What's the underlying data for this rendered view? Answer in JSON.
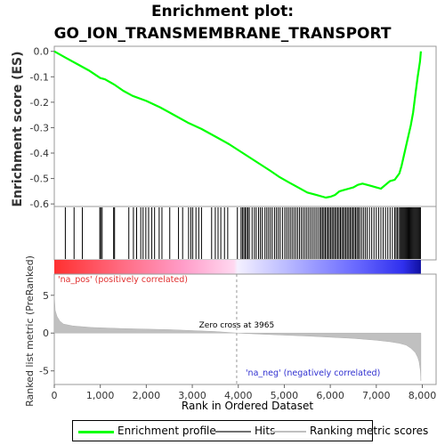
{
  "title_line1": "Enrichment plot:",
  "title_line2": "GO_ION_TRANSMEMBRANE_TRANSPORT",
  "legend": {
    "items": [
      {
        "label": "Enrichment profile",
        "color": "#00ff00"
      },
      {
        "label": "Hits",
        "color": "#707070"
      },
      {
        "label": "Ranking metric scores",
        "color": "#c0c0c0"
      }
    ]
  },
  "chart_data": {
    "type": "line",
    "xlabel": "Rank in Ordered Dataset",
    "xlim": [
      0,
      8300
    ],
    "x_ticks": [
      0,
      1000,
      2000,
      3000,
      4000,
      5000,
      6000,
      7000,
      8000
    ],
    "x_tick_labels": [
      "0",
      "1,000",
      "2,000",
      "3,000",
      "4,000",
      "5,000",
      "6,000",
      "7,000",
      "8,000"
    ],
    "es_panel": {
      "ylabel": "Enrichment score (ES)",
      "ylim": [
        -0.61,
        0.02
      ],
      "y_ticks": [
        0.0,
        -0.1,
        -0.2,
        -0.3,
        -0.4,
        -0.5,
        -0.6
      ],
      "y_tick_labels": [
        "0.0",
        "-0.1",
        "-0.2",
        "-0.3",
        "-0.4",
        "-0.5",
        "-0.6"
      ],
      "series": [
        {
          "name": "Enrichment profile",
          "color": "#00ff00",
          "x": [
            0,
            250,
            500,
            750,
            1000,
            1100,
            1300,
            1500,
            1700,
            2000,
            2300,
            2600,
            2900,
            3200,
            3500,
            3800,
            4100,
            4400,
            4700,
            4900,
            5100,
            5300,
            5500,
            5700,
            5900,
            6000,
            6100,
            6200,
            6300,
            6400,
            6500,
            6600,
            6700,
            6800,
            6900,
            7000,
            7100,
            7200,
            7300,
            7400,
            7500,
            7550,
            7600,
            7650,
            7700,
            7750,
            7800,
            7850,
            7900,
            7950,
            7970
          ],
          "y": [
            0.0,
            -0.025,
            -0.05,
            -0.075,
            -0.105,
            -0.11,
            -0.13,
            -0.155,
            -0.175,
            -0.195,
            -0.22,
            -0.25,
            -0.28,
            -0.305,
            -0.335,
            -0.365,
            -0.4,
            -0.435,
            -0.47,
            -0.495,
            -0.515,
            -0.535,
            -0.555,
            -0.565,
            -0.575,
            -0.572,
            -0.565,
            -0.55,
            -0.545,
            -0.54,
            -0.535,
            -0.525,
            -0.52,
            -0.525,
            -0.53,
            -0.535,
            -0.54,
            -0.525,
            -0.51,
            -0.505,
            -0.48,
            -0.45,
            -0.41,
            -0.37,
            -0.33,
            -0.29,
            -0.24,
            -0.17,
            -0.1,
            -0.04,
            0.0
          ]
        }
      ]
    },
    "hits_panel": {
      "name": "Hits",
      "positions": [
        240,
        430,
        610,
        990,
        1010,
        1040,
        1290,
        1310,
        1620,
        1720,
        1790,
        1880,
        1930,
        1990,
        2050,
        2120,
        2180,
        2280,
        2340,
        2510,
        2700,
        2790,
        2920,
        2970,
        3010,
        3080,
        3140,
        3200,
        3420,
        3500,
        3560,
        3620,
        3700,
        3770,
        3980,
        4060,
        4090,
        4120,
        4150,
        4180,
        4210,
        4240,
        4300,
        4350,
        4390,
        4440,
        4480,
        4520,
        4580,
        4620,
        4660,
        4700,
        4740,
        4790,
        4830,
        4870,
        4910,
        4960,
        5010,
        5050,
        5090,
        5130,
        5170,
        5210,
        5250,
        5290,
        5330,
        5370,
        5410,
        5450,
        5490,
        5530,
        5570,
        5610,
        5650,
        5690,
        5730,
        5770,
        5800,
        5830,
        5860,
        5890,
        5920,
        5950,
        5980,
        6010,
        6040,
        6070,
        6100,
        6130,
        6160,
        6190,
        6220,
        6250,
        6280,
        6310,
        6340,
        6370,
        6400,
        6430,
        6460,
        6490,
        6520,
        6550,
        6580,
        6610,
        6640,
        6680,
        6720,
        6760,
        6800,
        6850,
        6900,
        6950,
        7000,
        7050,
        7100,
        7150,
        7200,
        7250,
        7300,
        7350,
        7400,
        7430,
        7460,
        7490,
        7520,
        7540,
        7560,
        7580,
        7600,
        7620,
        7640,
        7660,
        7680,
        7700,
        7720,
        7740,
        7760,
        7780,
        7800,
        7820,
        7840,
        7860,
        7880,
        7900,
        7920,
        7940,
        7960
      ]
    },
    "rank_panel": {
      "name": "Ranking metric scores",
      "ylabel": "Ranked list metric (PreRanked)",
      "ylim": [
        -6.8,
        7.8
      ],
      "y_ticks": [
        5,
        0,
        -5
      ],
      "y_tick_labels": [
        "5",
        "0",
        "-5"
      ],
      "x": [
        0,
        20,
        60,
        120,
        200,
        400,
        800,
        1500,
        2500,
        3500,
        3965,
        4500,
        5500,
        6500,
        7000,
        7300,
        7500,
        7650,
        7750,
        7850,
        7900,
        7930,
        7960,
        7970
      ],
      "y": [
        5.0,
        3.0,
        2.2,
        1.6,
        1.2,
        0.95,
        0.75,
        0.6,
        0.45,
        0.2,
        0.0,
        -0.15,
        -0.4,
        -0.7,
        -0.95,
        -1.15,
        -1.35,
        -1.6,
        -2.0,
        -2.6,
        -3.2,
        -3.8,
        -5.0,
        -6.3
      ],
      "zero_cross_label": "Zero cross at 3965",
      "zero_cross": 3965,
      "pos_label": "'na_pos' (positively correlated)",
      "neg_label": "'na_neg' (negatively correlated)"
    }
  }
}
